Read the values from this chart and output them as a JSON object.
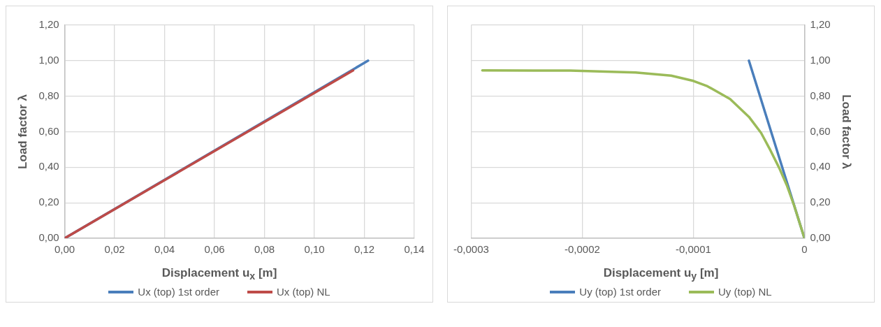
{
  "chart_data": [
    {
      "type": "line",
      "xlabel": "Displacement u$_{x}$ [m]",
      "ylabel": "Load factor λ",
      "grid": true,
      "legend": "bottom",
      "marker": "none",
      "line_style": "solid",
      "xlim": [
        0,
        0.14
      ],
      "xticks": [
        {
          "value": 0,
          "label": "0,00"
        },
        {
          "value": 0.02,
          "label": "0,02"
        },
        {
          "value": 0.04,
          "label": "0,04"
        },
        {
          "value": 0.06,
          "label": "0,06"
        },
        {
          "value": 0.08,
          "label": "0,08"
        },
        {
          "value": 0.1,
          "label": "0,10"
        },
        {
          "value": 0.12,
          "label": "0,12"
        },
        {
          "value": 0.14,
          "label": "0,14"
        }
      ],
      "ylim": [
        0,
        1.2
      ],
      "yticks": [
        {
          "value": 0,
          "label": "0,00"
        },
        {
          "value": 0.2,
          "label": "0,20"
        },
        {
          "value": 0.4,
          "label": "0,40"
        },
        {
          "value": 0.6,
          "label": "0,60"
        },
        {
          "value": 0.8,
          "label": "0,80"
        },
        {
          "value": 1,
          "label": "1,00"
        },
        {
          "value": 1.2,
          "label": "1,20"
        }
      ],
      "series": [
        {
          "name": "Ux (top) 1st order",
          "color": "#4a7ebb",
          "x": [
            0,
            0.1215
          ],
          "values": [
            0,
            1.0
          ]
        },
        {
          "name": "Ux (top) NL",
          "color": "#be4b48",
          "x": [
            0,
            0.1155
          ],
          "values": [
            0,
            0.945
          ]
        }
      ]
    },
    {
      "type": "line",
      "xlabel": "Displacement u$_{y}$ [m]",
      "y2label": "Load factor λ",
      "grid": true,
      "legend": "bottom",
      "marker": "none",
      "line_style": "solid",
      "xlim": [
        -0.0003,
        0
      ],
      "xticks": [
        {
          "value": -0.0003,
          "label": "-0,0003"
        },
        {
          "value": -0.0002,
          "label": "-0,0002"
        },
        {
          "value": -0.0001,
          "label": "-0,0001"
        },
        0
      ],
      "y2lim": [
        0,
        1.2
      ],
      "y2ticks": [
        {
          "value": 0,
          "label": "0,00"
        },
        {
          "value": 0.2,
          "label": "0,20"
        },
        {
          "value": 0.4,
          "label": "0,40"
        },
        {
          "value": 0.6,
          "label": "0,60"
        },
        {
          "value": 0.8,
          "label": "0,80"
        },
        {
          "value": 1,
          "label": "1,00"
        },
        {
          "value": 1.2,
          "label": "1,20"
        }
      ],
      "series": [
        {
          "name": "Uy (top) 1st order",
          "color": "#4a7ebb",
          "axis": "y2",
          "x": [
            -5e-05,
            0
          ],
          "values": [
            1.0,
            0
          ]
        },
        {
          "name": "Uy (top) NL",
          "color": "#9bbb59",
          "axis": "y2",
          "x": [
            -0.00029,
            -0.000211,
            -0.000152,
            -0.00012,
            -0.0001,
            -8.73e-05,
            -6.69e-05,
            -5e-05,
            -3.9e-05,
            -3.06e-05,
            -2.27e-05,
            -1.59e-05,
            -9.1e-06,
            0
          ],
          "values": [
            0.945,
            0.944,
            0.933,
            0.916,
            0.886,
            0.856,
            0.784,
            0.684,
            0.593,
            0.495,
            0.396,
            0.299,
            0.181,
            0
          ]
        }
      ]
    }
  ]
}
